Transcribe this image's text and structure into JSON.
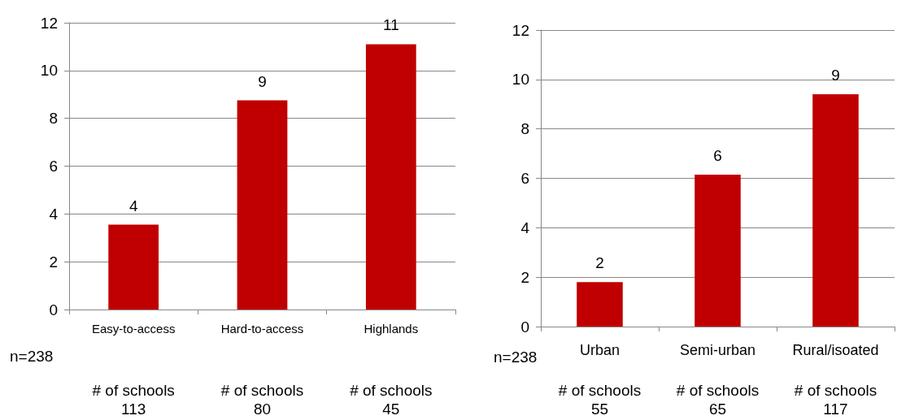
{
  "chart_data": [
    {
      "type": "bar",
      "categories": [
        "Easy-to-access",
        "Hard-to-access",
        "Highlands"
      ],
      "values": [
        3.55,
        8.75,
        11.1
      ],
      "color": "#c00000",
      "value_labels": [
        "4",
        "9",
        "11"
      ],
      "ylim": [
        0,
        12
      ],
      "yticks": [
        0,
        2,
        4,
        6,
        8,
        10,
        12
      ],
      "grid": "y",
      "annotations": [
        "n=238",
        "# of schools\n113",
        "# of schools\n80",
        "# of schools\n45"
      ]
    },
    {
      "type": "bar",
      "categories": [
        "Urban",
        "Semi-urban",
        "Rural/isoated"
      ],
      "values": [
        1.8,
        6.15,
        9.4
      ],
      "color": "#c00000",
      "value_labels": [
        "2",
        "6",
        "9"
      ],
      "ylim": [
        0,
        12
      ],
      "yticks": [
        0,
        2,
        4,
        6,
        8,
        10,
        12
      ],
      "grid": "y",
      "annotations": [
        "n=238",
        "# of schools\n55",
        "# of schools\n65",
        "# of schools\n117"
      ]
    }
  ]
}
